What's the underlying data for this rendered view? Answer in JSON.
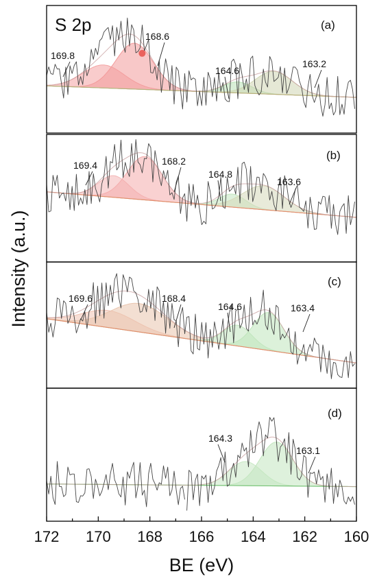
{
  "chart_data": {
    "type": "line",
    "title": "",
    "subtitle": "S 2p",
    "xlabel": "BE (eV)",
    "ylabel": "Intensity (a.u.)",
    "xlim": [
      172,
      160
    ],
    "x_reversed": true,
    "x_ticks": [
      "172",
      "170",
      "168",
      "166",
      "164",
      "162",
      "160"
    ],
    "grid": false,
    "panels": [
      {
        "label": "(a)",
        "peaks": [
          {
            "center": 169.8,
            "label": "169.8",
            "color": "#f4a3a3",
            "height": 0.5,
            "fwhm": 1.9
          },
          {
            "center": 168.6,
            "label": "168.6",
            "color": "#f39a9a",
            "height": 1.0,
            "fwhm": 1.7
          },
          {
            "center": 164.6,
            "label": "164.6",
            "color": "#b9e2b6",
            "height": 0.24,
            "fwhm": 1.3
          },
          {
            "center": 163.2,
            "label": "163.2",
            "color": "#cfd5b2",
            "height": 0.5,
            "fwhm": 1.7
          }
        ],
        "marker_at": 168.3
      },
      {
        "label": "(b)",
        "peaks": [
          {
            "center": 169.4,
            "label": "169.4",
            "color": "#f4b7b7",
            "height": 0.5,
            "fwhm": 1.4
          },
          {
            "center": 168.2,
            "label": "168.2",
            "color": "#f4acac",
            "height": 1.0,
            "fwhm": 1.6
          },
          {
            "center": 164.8,
            "label": "164.8",
            "color": "#c3e6bf",
            "height": 0.3,
            "fwhm": 1.2
          },
          {
            "center": 163.6,
            "label": "163.6",
            "color": "#d6d9b9",
            "height": 0.55,
            "fwhm": 1.9
          }
        ]
      },
      {
        "label": "(c)",
        "peaks": [
          {
            "center": 169.6,
            "label": "169.6",
            "color": "#f1c2b3",
            "height": 0.45,
            "fwhm": 2.4
          },
          {
            "center": 168.4,
            "label": "168.4",
            "color": "#e9c4ad",
            "height": 0.75,
            "fwhm": 2.6
          },
          {
            "center": 164.6,
            "label": "164.6",
            "color": "#c3e6bf",
            "height": 0.55,
            "fwhm": 1.3
          },
          {
            "center": 163.4,
            "label": "163.4",
            "color": "#bfe5bb",
            "height": 1.0,
            "fwhm": 1.4
          }
        ]
      },
      {
        "label": "(d)",
        "peaks": [
          {
            "center": 164.3,
            "label": "164.3",
            "color": "#c8e8c4",
            "height": 0.55,
            "fwhm": 1.5
          },
          {
            "center": 163.1,
            "label": "163.1",
            "color": "#c3e6bf",
            "height": 1.0,
            "fwhm": 1.5
          }
        ],
        "green_raw_until": 166.6
      }
    ],
    "colors": {
      "raw_signal": "#444444",
      "raw_signal_d": "#3f8f3f",
      "envelope": "#c9a0a0",
      "baseline_a": "#b8b07a",
      "baseline_bc": "#e58a6a",
      "baseline_d": "#6fbf6f"
    }
  }
}
